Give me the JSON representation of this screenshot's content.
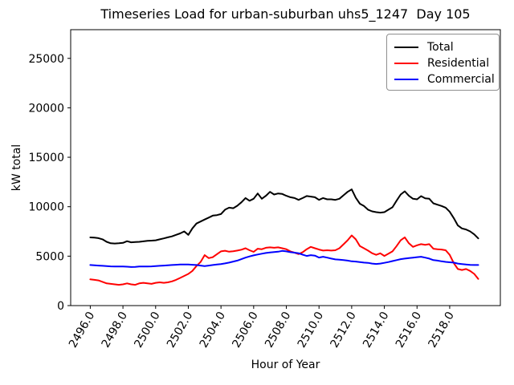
{
  "title": "Timeseries Load for urban-suburban uhs5_1247  Day 105",
  "chart_data": {
    "type": "line",
    "title": "Timeseries Load for urban-suburban uhs5_1247  Day 105",
    "xlabel": "Hour of Year",
    "ylabel": "kW total",
    "xlim": [
      2494.8,
      2521.1
    ],
    "ylim": [
      0,
      27900
    ],
    "grid": false,
    "legend_position": "upper right",
    "x_ticks": [
      2496,
      2498,
      2500,
      2502,
      2504,
      2506,
      2508,
      2510,
      2512,
      2514,
      2516,
      2518
    ],
    "x_tick_labels": [
      "2496.0",
      "2498.0",
      "2500.0",
      "2502.0",
      "2504.0",
      "2506.0",
      "2508.0",
      "2510.0",
      "2512.0",
      "2514.0",
      "2516.0",
      "2518.0"
    ],
    "y_ticks": [
      0,
      5000,
      10000,
      15000,
      20000,
      25000
    ],
    "y_tick_labels": [
      "0",
      "5000",
      "10000",
      "15000",
      "20000",
      "25000"
    ],
    "x": [
      2496.0,
      2496.25,
      2496.5,
      2496.75,
      2497.0,
      2497.25,
      2497.5,
      2497.75,
      2498.0,
      2498.25,
      2498.5,
      2498.75,
      2499.0,
      2499.25,
      2499.5,
      2499.75,
      2500.0,
      2500.25,
      2500.5,
      2500.75,
      2501.0,
      2501.25,
      2501.5,
      2501.75,
      2502.0,
      2502.25,
      2502.5,
      2502.75,
      2503.0,
      2503.25,
      2503.5,
      2503.75,
      2504.0,
      2504.25,
      2504.5,
      2504.75,
      2505.0,
      2505.25,
      2505.5,
      2505.75,
      2506.0,
      2506.25,
      2506.5,
      2506.75,
      2507.0,
      2507.25,
      2507.5,
      2507.75,
      2508.0,
      2508.25,
      2508.5,
      2508.75,
      2509.0,
      2509.25,
      2509.5,
      2509.75,
      2510.0,
      2510.25,
      2510.5,
      2510.75,
      2511.0,
      2511.25,
      2511.5,
      2511.75,
      2512.0,
      2512.25,
      2512.5,
      2512.75,
      2513.0,
      2513.25,
      2513.5,
      2513.75,
      2514.0,
      2514.25,
      2514.5,
      2514.75,
      2515.0,
      2515.25,
      2515.5,
      2515.75,
      2516.0,
      2516.25,
      2516.5,
      2516.75,
      2517.0,
      2517.25,
      2517.5,
      2517.75,
      2518.0,
      2518.25,
      2518.5,
      2518.75,
      2519.0,
      2519.25,
      2519.5,
      2519.75
    ],
    "series": [
      {
        "name": "Total",
        "color": "#000000",
        "values": [
          6890,
          6870,
          6820,
          6700,
          6450,
          6300,
          6280,
          6300,
          6340,
          6510,
          6400,
          6420,
          6450,
          6500,
          6550,
          6570,
          6600,
          6700,
          6800,
          6900,
          7000,
          7150,
          7300,
          7500,
          7150,
          7800,
          8300,
          8500,
          8700,
          8900,
          9100,
          9150,
          9250,
          9700,
          9900,
          9850,
          10100,
          10450,
          10880,
          10600,
          10800,
          11340,
          10800,
          11100,
          11500,
          11230,
          11340,
          11290,
          11100,
          10960,
          10880,
          10690,
          10880,
          11080,
          11020,
          10960,
          10690,
          10880,
          10750,
          10750,
          10690,
          10800,
          11150,
          11500,
          11750,
          10900,
          10300,
          10070,
          9700,
          9530,
          9450,
          9400,
          9450,
          9700,
          9940,
          10610,
          11230,
          11560,
          11100,
          10800,
          10750,
          11070,
          10850,
          10800,
          10340,
          10200,
          10070,
          9900,
          9500,
          8850,
          8100,
          7800,
          7700,
          7500,
          7200,
          6800
        ]
      },
      {
        "name": "Residential",
        "color": "#ff0000",
        "values": [
          2650,
          2600,
          2550,
          2400,
          2250,
          2200,
          2150,
          2100,
          2150,
          2250,
          2150,
          2100,
          2250,
          2300,
          2250,
          2200,
          2300,
          2350,
          2300,
          2350,
          2450,
          2600,
          2800,
          3000,
          3200,
          3500,
          4000,
          4400,
          5100,
          4800,
          4900,
          5200,
          5480,
          5550,
          5450,
          5500,
          5560,
          5650,
          5800,
          5600,
          5430,
          5750,
          5700,
          5850,
          5890,
          5850,
          5890,
          5800,
          5700,
          5480,
          5350,
          5210,
          5400,
          5700,
          5940,
          5800,
          5670,
          5560,
          5600,
          5560,
          5600,
          5800,
          6200,
          6600,
          7100,
          6700,
          6020,
          5800,
          5560,
          5300,
          5130,
          5290,
          5020,
          5250,
          5480,
          6020,
          6600,
          6900,
          6300,
          5940,
          6100,
          6210,
          6150,
          6210,
          5750,
          5700,
          5670,
          5600,
          5130,
          4300,
          3700,
          3600,
          3700,
          3500,
          3200,
          2700
        ]
      },
      {
        "name": "Commercial",
        "color": "#0000ff",
        "values": [
          4100,
          4080,
          4050,
          4020,
          4000,
          3970,
          3950,
          3950,
          3950,
          3930,
          3900,
          3920,
          3950,
          3950,
          3950,
          3970,
          4000,
          4020,
          4050,
          4080,
          4100,
          4130,
          4150,
          4150,
          4150,
          4130,
          4100,
          4050,
          4000,
          4050,
          4100,
          4150,
          4200,
          4270,
          4350,
          4450,
          4550,
          4700,
          4850,
          4970,
          5080,
          5170,
          5250,
          5320,
          5380,
          5420,
          5450,
          5530,
          5480,
          5400,
          5350,
          5300,
          5150,
          5020,
          5100,
          5050,
          4860,
          4940,
          4850,
          4750,
          4670,
          4650,
          4600,
          4550,
          4480,
          4450,
          4400,
          4350,
          4320,
          4250,
          4210,
          4250,
          4320,
          4400,
          4500,
          4600,
          4700,
          4750,
          4800,
          4850,
          4900,
          4940,
          4850,
          4750,
          4600,
          4550,
          4480,
          4420,
          4380,
          4350,
          4250,
          4200,
          4150,
          4120,
          4100,
          4100
        ]
      }
    ]
  }
}
